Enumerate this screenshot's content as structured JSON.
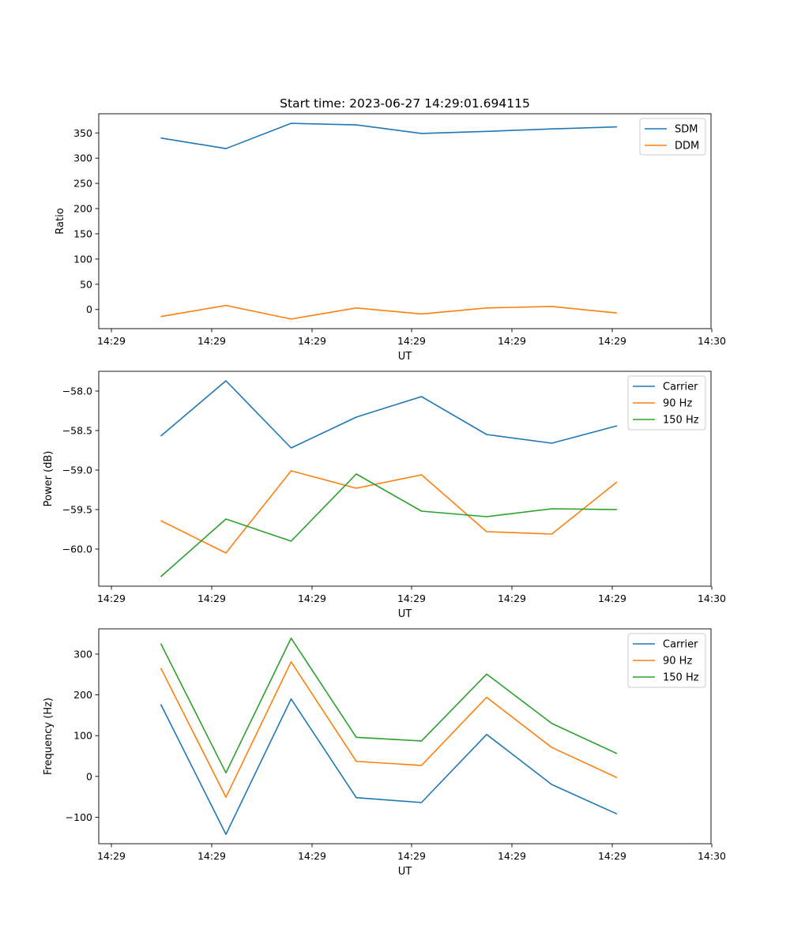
{
  "title": "Start time: 2023-06-27 14:29:01.694115",
  "colors": {
    "blue": "#1f77b4",
    "orange": "#ff7f0e",
    "green": "#2ca02c"
  },
  "chart_data": [
    {
      "type": "line",
      "xlabel": "UT",
      "ylabel": "Ratio",
      "x_ticks": [
        "14:29",
        "14:29",
        "14:29",
        "14:29",
        "14:29",
        "14:29",
        "14:30"
      ],
      "y_ticks": [
        "0",
        "50",
        "100",
        "150",
        "200",
        "250",
        "300",
        "350"
      ],
      "ylim": [
        -38,
        388
      ],
      "legend_position": "top-right",
      "grid": false,
      "series": [
        {
          "name": "SDM",
          "color": "#1f77b4",
          "values": [
            340,
            319,
            369,
            366,
            349,
            353,
            358,
            362
          ]
        },
        {
          "name": "DDM",
          "color": "#ff7f0e",
          "values": [
            -14,
            8,
            -19,
            3,
            -9,
            3,
            6,
            -7
          ]
        }
      ]
    },
    {
      "type": "line",
      "xlabel": "UT",
      "ylabel": "Power (dB)",
      "x_ticks": [
        "14:29",
        "14:29",
        "14:29",
        "14:29",
        "14:29",
        "14:29",
        "14:30"
      ],
      "y_ticks": [
        "−60.0",
        "−59.5",
        "−59.0",
        "−58.5",
        "−58.0"
      ],
      "ylim": [
        -60.47,
        -57.75
      ],
      "legend_position": "top-right",
      "grid": false,
      "series": [
        {
          "name": "Carrier",
          "color": "#1f77b4",
          "values": [
            -58.57,
            -57.87,
            -58.72,
            -58.33,
            -58.07,
            -58.55,
            -58.66,
            -58.44
          ]
        },
        {
          "name": "90 Hz",
          "color": "#ff7f0e",
          "values": [
            -59.64,
            -60.05,
            -59.01,
            -59.23,
            -59.06,
            -59.78,
            -59.81,
            -59.15
          ]
        },
        {
          "name": "150 Hz",
          "color": "#2ca02c",
          "values": [
            -60.35,
            -59.62,
            -59.9,
            -59.05,
            -59.52,
            -59.59,
            -59.49,
            -59.5
          ]
        }
      ]
    },
    {
      "type": "line",
      "xlabel": "UT",
      "ylabel": "Frequency (Hz)",
      "x_ticks": [
        "14:29",
        "14:29",
        "14:29",
        "14:29",
        "14:29",
        "14:29",
        "14:30"
      ],
      "y_ticks": [
        "−100",
        "0",
        "100",
        "200",
        "300"
      ],
      "ylim": [
        -165,
        362
      ],
      "legend_position": "top-right",
      "grid": false,
      "series": [
        {
          "name": "Carrier",
          "color": "#1f77b4",
          "values": [
            177,
            -142,
            190,
            -52,
            -64,
            103,
            -20,
            -92
          ]
        },
        {
          "name": "90 Hz",
          "color": "#ff7f0e",
          "values": [
            266,
            -51,
            281,
            37,
            27,
            194,
            71,
            -3
          ]
        },
        {
          "name": "150 Hz",
          "color": "#2ca02c",
          "values": [
            326,
            9,
            339,
            96,
            87,
            251,
            130,
            56
          ]
        }
      ]
    }
  ]
}
